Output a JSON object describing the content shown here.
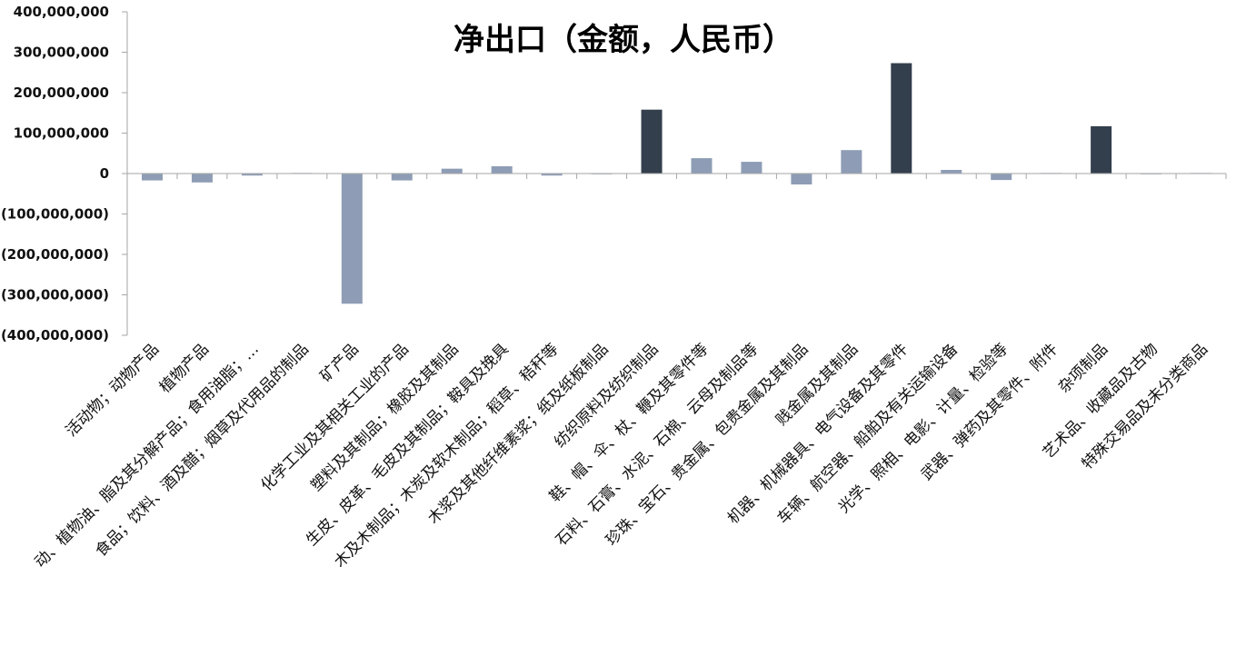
{
  "chart_data": {
    "type": "bar",
    "title": "净出口（金额，人民币）",
    "xlabel": "",
    "ylabel": "",
    "ylim": [
      -400000000,
      400000000
    ],
    "yticks": [
      400000000,
      300000000,
      200000000,
      100000000,
      0,
      -100000000,
      -200000000,
      -300000000,
      -400000000
    ],
    "ytick_labels": [
      "400,000,000",
      "300,000,000",
      "200,000,000",
      "100,000,000",
      "0",
      "(100,000,000)",
      "(200,000,000)",
      "(300,000,000)",
      "(400,000,000)"
    ],
    "grid": false,
    "legend": "none",
    "categories": [
      "活动物；动物产品",
      "植物产品",
      "动、植物油、脂及其分解产品；食用油脂；…",
      "食品；饮料、酒及醋；烟草及代用品的制品",
      "矿产品",
      "化学工业及其相关工业的产品",
      "塑料及其制品；橡胶及其制品",
      "生皮、皮革、毛皮及其制品；鞍具及挽具",
      "木及木制品；木炭及软木制品；稻草、秸秆等",
      "木浆及其他纤维素浆；纸及纸板制品",
      "纺织原料及纺织制品",
      "鞋、帽、伞、杖、鞭及其零件等",
      "石料、石膏、水泥、石棉、云母及制品等",
      "珍珠、宝石、贵金属、包贵金属及其制品",
      "贱金属及其制品",
      "机器、机械器具、电气设备及其零件",
      "车辆、航空器、船舶及有关运输设备",
      "光学、照相、电影、计量、检验等",
      "武器、弹药及其零件、附件",
      "杂项制品",
      "艺术品、收藏品及古物",
      "特殊交易品及未分类商品"
    ],
    "values": [
      -17000000,
      -22000000,
      -5000000,
      1500000,
      -322000000,
      -17000000,
      12000000,
      18000000,
      -5000000,
      -1000000,
      158000000,
      38000000,
      29000000,
      -27000000,
      58000000,
      273000000,
      9000000,
      -16000000,
      1500000,
      117000000,
      -500000,
      1500000
    ],
    "colors": {
      "light_bar": "#8e9db5",
      "dark_bar": "#333f4d",
      "axis": "#a6a6a6"
    },
    "dark_bar_indices": [
      10,
      15,
      19
    ]
  }
}
